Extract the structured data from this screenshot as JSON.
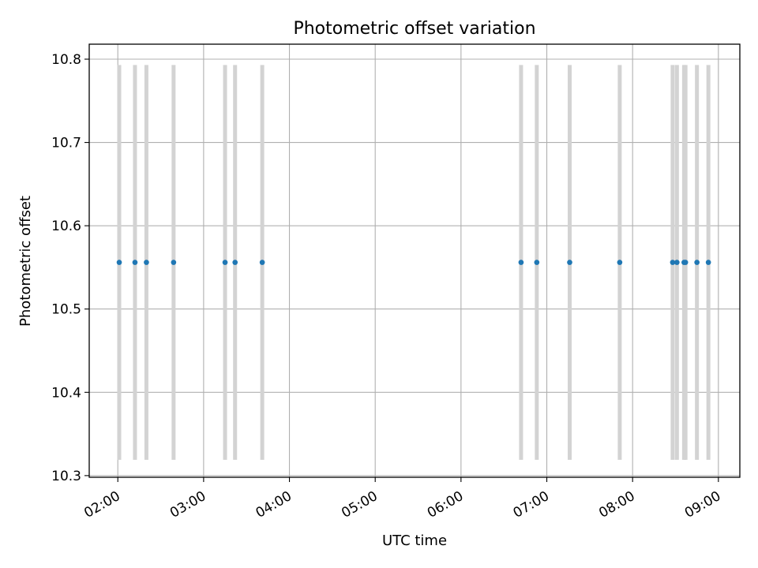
{
  "chart_data": {
    "type": "scatter",
    "title": "Photometric offset variation",
    "xlabel": "UTC time",
    "ylabel": "Photometric offset",
    "x_ticks": [
      "02:00",
      "03:00",
      "04:00",
      "05:00",
      "06:00",
      "07:00",
      "08:00",
      "09:00"
    ],
    "y_ticks": [
      "10.3",
      "10.4",
      "10.5",
      "10.6",
      "10.7",
      "10.8"
    ],
    "xlim": [
      "01:40",
      "09:15"
    ],
    "ylim": [
      10.298,
      10.818
    ],
    "grid": true,
    "series": [
      {
        "color": "#1f77b4",
        "points": [
          {
            "x": "02:01",
            "y": 10.556,
            "yerr": 0.237
          },
          {
            "x": "02:12",
            "y": 10.556,
            "yerr": 0.237
          },
          {
            "x": "02:20",
            "y": 10.556,
            "yerr": 0.237
          },
          {
            "x": "02:39",
            "y": 10.556,
            "yerr": 0.237
          },
          {
            "x": "03:15",
            "y": 10.556,
            "yerr": 0.237
          },
          {
            "x": "03:22",
            "y": 10.556,
            "yerr": 0.237
          },
          {
            "x": "03:41",
            "y": 10.556,
            "yerr": 0.237
          },
          {
            "x": "06:42",
            "y": 10.556,
            "yerr": 0.237
          },
          {
            "x": "06:53",
            "y": 10.556,
            "yerr": 0.237
          },
          {
            "x": "07:16",
            "y": 10.556,
            "yerr": 0.237
          },
          {
            "x": "07:51",
            "y": 10.556,
            "yerr": 0.237
          },
          {
            "x": "08:28",
            "y": 10.556,
            "yerr": 0.237
          },
          {
            "x": "08:31",
            "y": 10.556,
            "yerr": 0.237
          },
          {
            "x": "08:36",
            "y": 10.556,
            "yerr": 0.237
          },
          {
            "x": "08:37",
            "y": 10.556,
            "yerr": 0.237
          },
          {
            "x": "08:45",
            "y": 10.556,
            "yerr": 0.237
          },
          {
            "x": "08:53",
            "y": 10.556,
            "yerr": 0.237
          }
        ]
      }
    ],
    "errorbar_color": "#d3d3d3"
  }
}
